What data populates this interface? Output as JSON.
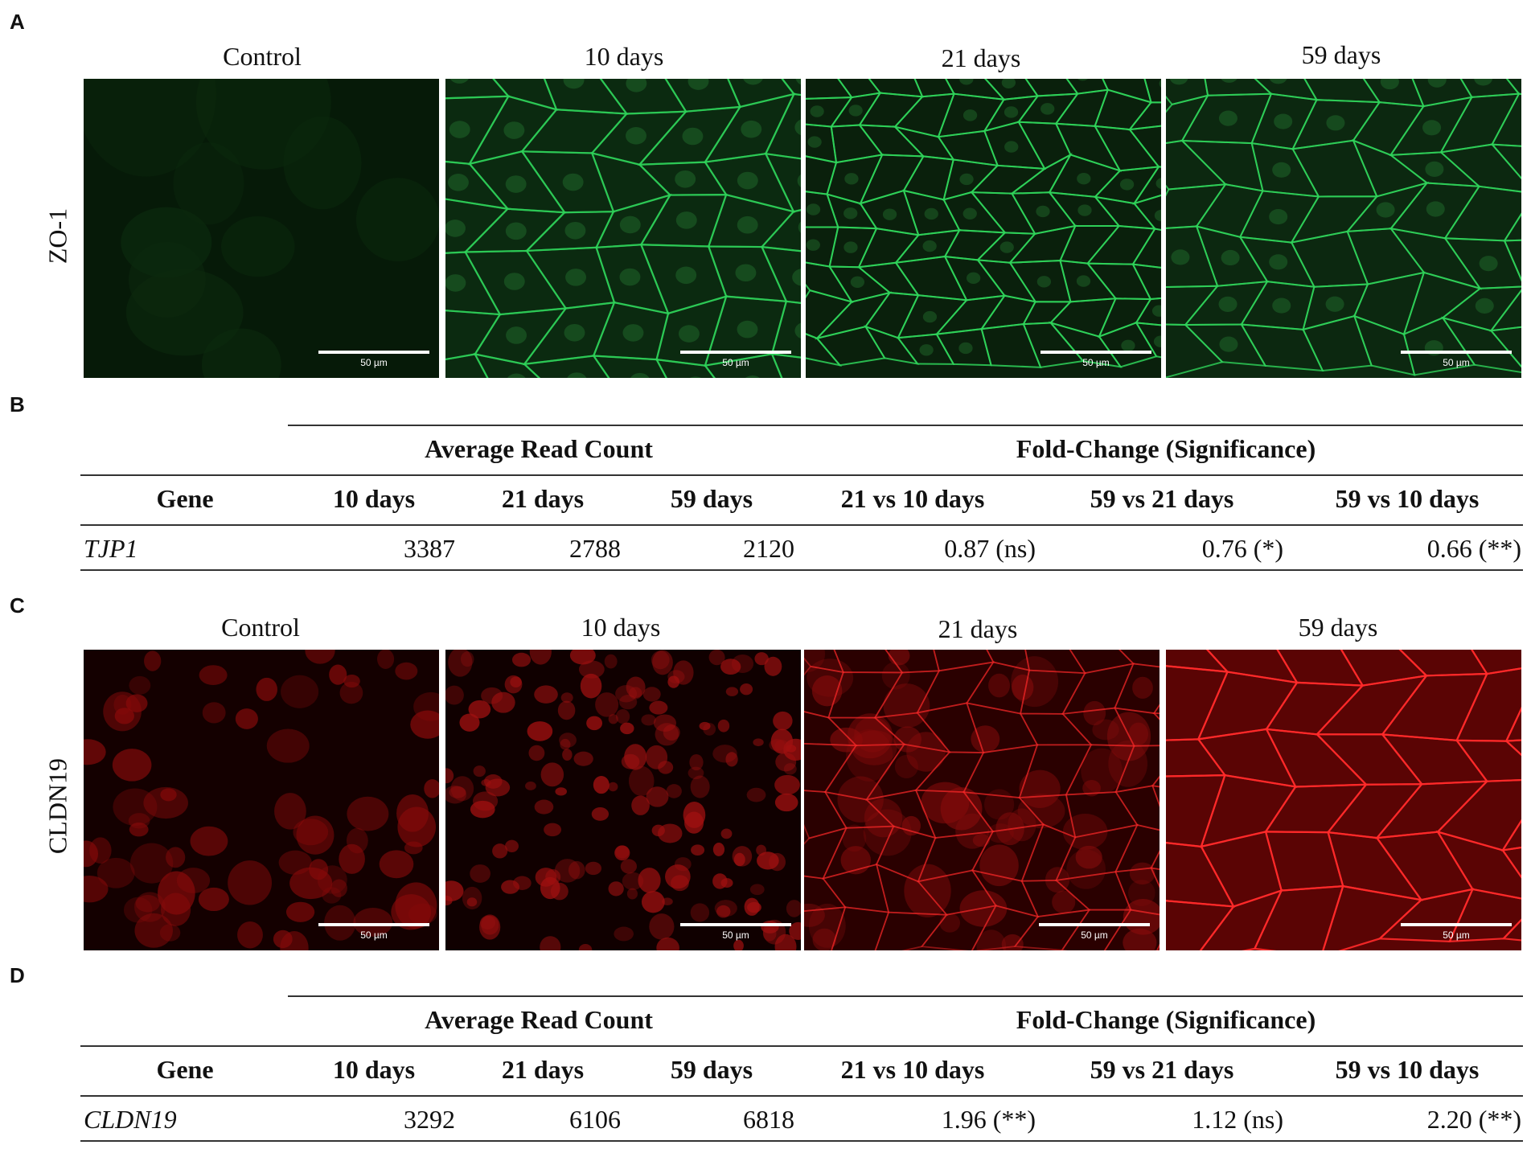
{
  "panels": {
    "a": {
      "letter": "A",
      "row_label": "ZO-1",
      "columns": [
        "Control",
        "10 days",
        "21 days",
        "59 days"
      ],
      "scale_label": "50 µm",
      "stain_color": "#2fd35a"
    },
    "b": {
      "letter": "B"
    },
    "c": {
      "letter": "C",
      "row_label": "CLDN19",
      "columns": [
        "Control",
        "10 days",
        "21 days",
        "59 days"
      ],
      "scale_label": "50 µm",
      "stain_color": "#ff2a2a"
    },
    "d": {
      "letter": "D"
    }
  },
  "table_headers": {
    "group1": "Average Read Count",
    "group2": "Fold-Change (Significance)",
    "gene": "Gene",
    "c1": "10 days",
    "c2": "21 days",
    "c3": "59 days",
    "c4": "21 vs 10 days",
    "c5": "59 vs 21 days",
    "c6": "59 vs 10 days"
  },
  "table_b": {
    "gene": "TJP1",
    "v10": "3387",
    "v21": "2788",
    "v59": "2120",
    "fc1": "0.87 (ns)",
    "fc2": "0.76 (*)",
    "fc3": "0.66 (**)"
  },
  "table_d": {
    "gene": "CLDN19",
    "v10": "3292",
    "v21": "6106",
    "v59": "6818",
    "fc1": "1.96 (**)",
    "fc2": "1.12 (ns)",
    "fc3": "2.20 (**)"
  }
}
